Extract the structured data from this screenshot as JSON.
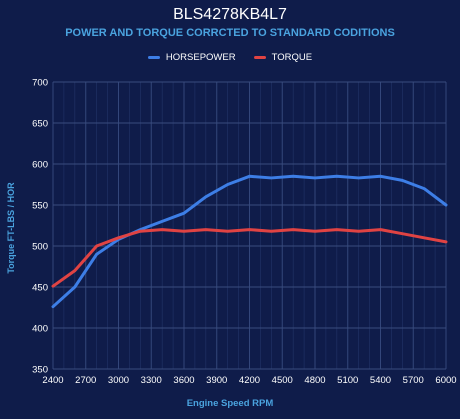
{
  "chart_data": {
    "type": "line",
    "title": "BLS4278KB4L7",
    "subtitle": "POWER AND TORQUE CORRCTED TO STANDARD CODITIONS",
    "xlabel": "Engine Speed RPM",
    "ylabel": "Torque FT-LBS / HOR",
    "xlim": [
      2400,
      6000
    ],
    "ylim": [
      350,
      700
    ],
    "x_ticks": [
      2400,
      2700,
      3000,
      3300,
      3600,
      3900,
      4200,
      4500,
      4800,
      5100,
      5400,
      5700,
      6000
    ],
    "y_ticks": [
      350,
      400,
      450,
      500,
      550,
      600,
      650,
      700
    ],
    "grid": true,
    "legend_position": "top",
    "x": [
      2400,
      2600,
      2800,
      3000,
      3200,
      3400,
      3600,
      3800,
      4000,
      4200,
      4400,
      4600,
      4800,
      5000,
      5200,
      5400,
      5600,
      5800,
      6000
    ],
    "series": [
      {
        "name": "HORSEPOWER",
        "color": "#3d7ee6",
        "values": [
          426,
          450,
          490,
          508,
          520,
          530,
          540,
          560,
          575,
          585,
          583,
          585,
          583,
          585,
          583,
          585,
          580,
          570,
          550
        ]
      },
      {
        "name": "TORQUE",
        "color": "#e04343",
        "values": [
          451,
          470,
          500,
          510,
          518,
          520,
          518,
          520,
          518,
          520,
          518,
          520,
          518,
          520,
          518,
          520,
          515,
          510,
          505
        ]
      }
    ]
  },
  "colors": {
    "background": "#0f1c4a",
    "grid": "#34456f",
    "axis_text": "#ffffff",
    "label_text": "#4aa3df"
  }
}
